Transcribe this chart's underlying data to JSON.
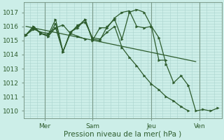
{
  "xlabel": "Pression niveau de la mer( hPa )",
  "bg_color": "#cceee8",
  "grid_color": "#aad4ce",
  "line_color": "#2d5c2d",
  "ylim": [
    1009.5,
    1017.7
  ],
  "yticks": [
    1010,
    1011,
    1012,
    1013,
    1014,
    1015,
    1016,
    1017
  ],
  "xlim": [
    -0.3,
    26.5
  ],
  "xtick_positions": [
    2.5,
    9,
    17,
    23.5
  ],
  "xtick_labels": [
    "Mer",
    "Sam",
    "Jeu",
    "Ven"
  ],
  "vline_positions": [
    2.5,
    9,
    17,
    23.5
  ],
  "line1": {
    "x": [
      0,
      1,
      2,
      3,
      4,
      5,
      6,
      7,
      8,
      9,
      10,
      11,
      12,
      13,
      14,
      15,
      16,
      17,
      18,
      19,
      20,
      21,
      22,
      23,
      24,
      25,
      26
    ],
    "y": [
      1015.4,
      1016.0,
      1015.5,
      1015.3,
      1016.2,
      1014.2,
      1015.6,
      1016.0,
      1016.5,
      1015.1,
      1015.0,
      1016.0,
      1016.5,
      1015.1,
      1017.0,
      1017.2,
      1017.0,
      1016.0,
      1015.2,
      1013.3,
      1012.0,
      1012.5,
      1011.8,
      1010.0,
      1010.1,
      1010.0,
      1010.2
    ]
  },
  "line2": {
    "x": [
      0,
      1,
      2,
      3,
      4,
      5,
      6,
      7,
      8,
      9,
      10,
      11,
      12,
      13,
      14,
      15,
      16,
      17,
      18,
      19
    ],
    "y": [
      1015.4,
      1016.0,
      1015.5,
      1015.3,
      1015.9,
      1014.2,
      1015.6,
      1015.9,
      1016.5,
      1015.0,
      1015.9,
      1015.9,
      1016.6,
      1017.0,
      1017.1,
      1016.0,
      1015.9,
      1016.0,
      1013.6,
      1013.6
    ]
  },
  "line3": {
    "x": [
      0,
      1,
      2,
      3,
      4,
      5,
      6,
      7,
      8,
      9,
      10,
      11,
      12,
      13,
      14,
      15,
      16,
      17,
      18,
      19,
      20,
      21,
      22
    ],
    "y": [
      1015.4,
      1015.9,
      1015.5,
      1015.4,
      1016.5,
      1014.2,
      1015.5,
      1016.1,
      1016.3,
      1015.2,
      1015.1,
      1015.6,
      1016.0,
      1014.5,
      1013.8,
      1013.2,
      1012.5,
      1011.9,
      1011.5,
      1011.0,
      1010.7,
      1010.3,
      1010.0
    ]
  },
  "line4": {
    "x": [
      0,
      1,
      2,
      3,
      4,
      5,
      6,
      7,
      8
    ],
    "y": [
      1015.4,
      1015.8,
      1015.6,
      1015.5,
      1015.9,
      1016.1,
      1015.5,
      1015.3,
      1015.1
    ]
  },
  "line5": {
    "x": [
      0,
      26
    ],
    "y": [
      1015.9,
      1013.5
    ]
  }
}
